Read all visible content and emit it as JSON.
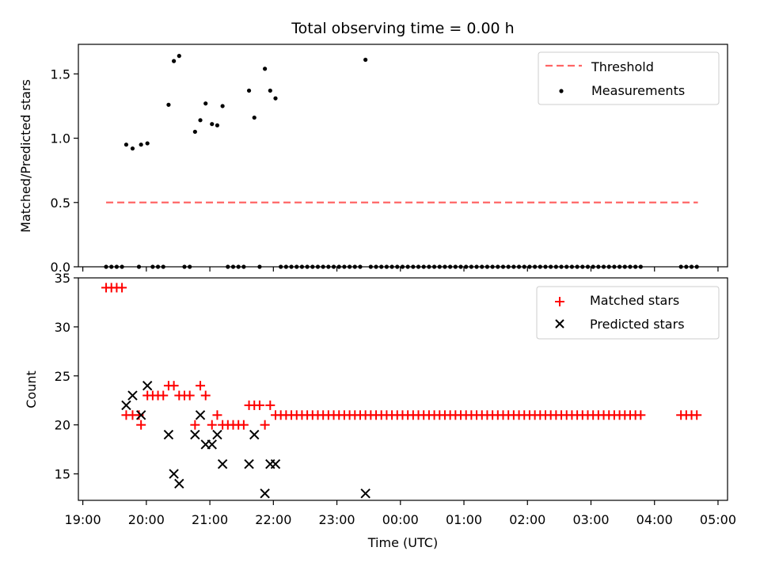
{
  "title": "Total observing time = 0.00 h",
  "xlabel": "Time (UTC)",
  "chart_data": [
    {
      "type": "scatter",
      "panel": "top",
      "title": "Total observing time = 0.00 h",
      "xlabel": "",
      "ylabel": "Matched/Predicted stars",
      "x_unit": "hours after 19:00 UTC",
      "xlim": [
        18.93,
        29.15
      ],
      "ylim": [
        0.0,
        1.73
      ],
      "yticks": [
        0.0,
        0.5,
        1.0,
        1.5
      ],
      "ytick_labels": [
        "0.0",
        "0.5",
        "1.0",
        "1.5"
      ],
      "grid": false,
      "legend_position": "upper right",
      "threshold": {
        "name": "Threshold",
        "color": "#ff6666",
        "style": "dashed",
        "x_range": [
          "19:22",
          "23:53+04:48"
        ],
        "y": 0.5
      },
      "series": [
        {
          "name": "Measurements",
          "color": "#000000",
          "marker": "dot",
          "points": [
            [
              "19:22",
              0.0
            ],
            [
              "19:27",
              0.0
            ],
            [
              "19:32",
              0.0
            ],
            [
              "19:37",
              0.0
            ],
            [
              "19:41",
              0.95
            ],
            [
              "19:47",
              0.92
            ],
            [
              "19:53",
              0.0
            ],
            [
              "19:55",
              0.95
            ],
            [
              "20:01",
              0.96
            ],
            [
              "20:06",
              0.0
            ],
            [
              "20:11",
              0.0
            ],
            [
              "20:16",
              0.0
            ],
            [
              "20:21",
              1.26
            ],
            [
              "20:26",
              1.6
            ],
            [
              "20:31",
              1.64
            ],
            [
              "20:36",
              0.0
            ],
            [
              "20:41",
              0.0
            ],
            [
              "20:46",
              1.05
            ],
            [
              "20:51",
              1.14
            ],
            [
              "20:56",
              1.27
            ],
            [
              "21:02",
              1.11
            ],
            [
              "21:07",
              1.1
            ],
            [
              "21:12",
              1.25
            ],
            [
              "21:17",
              0.0
            ],
            [
              "21:22",
              0.0
            ],
            [
              "21:27",
              0.0
            ],
            [
              "21:32",
              0.0
            ],
            [
              "21:37",
              1.37
            ],
            [
              "21:42",
              1.16
            ],
            [
              "21:47",
              0.0
            ],
            [
              "21:52",
              1.54
            ],
            [
              "21:57",
              1.37
            ],
            [
              "22:02",
              1.31
            ],
            [
              "22:07",
              0.0
            ],
            [
              "22:12",
              0.0
            ],
            [
              "22:17",
              0.0
            ],
            [
              "22:22",
              0.0
            ],
            [
              "22:27",
              0.0
            ],
            [
              "22:32",
              0.0
            ],
            [
              "22:37",
              0.0
            ],
            [
              "22:42",
              0.0
            ],
            [
              "22:47",
              0.0
            ],
            [
              "22:52",
              0.0
            ],
            [
              "22:57",
              0.0
            ],
            [
              "23:02",
              0.0
            ],
            [
              "23:07",
              0.0
            ],
            [
              "23:12",
              0.0
            ],
            [
              "23:17",
              0.0
            ],
            [
              "23:22",
              0.0
            ],
            [
              "23:27",
              1.61
            ],
            [
              "23:32",
              0.0
            ],
            [
              "23:37",
              0.0
            ],
            [
              "23:42",
              0.0
            ],
            [
              "23:47",
              0.0
            ],
            [
              "23:52",
              0.0
            ],
            [
              "23:57",
              0.0
            ],
            [
              "00:02",
              0.0
            ],
            [
              "00:07",
              0.0
            ],
            [
              "00:12",
              0.0
            ],
            [
              "00:17",
              0.0
            ],
            [
              "00:22",
              0.0
            ],
            [
              "00:27",
              0.0
            ],
            [
              "00:32",
              0.0
            ],
            [
              "00:37",
              0.0
            ],
            [
              "00:42",
              0.0
            ],
            [
              "00:47",
              0.0
            ],
            [
              "00:52",
              0.0
            ],
            [
              "00:57",
              0.0
            ],
            [
              "01:02",
              0.0
            ],
            [
              "01:07",
              0.0
            ],
            [
              "01:12",
              0.0
            ],
            [
              "01:17",
              0.0
            ],
            [
              "01:22",
              0.0
            ],
            [
              "01:27",
              0.0
            ],
            [
              "01:32",
              0.0
            ],
            [
              "01:37",
              0.0
            ],
            [
              "01:42",
              0.0
            ],
            [
              "01:47",
              0.0
            ],
            [
              "01:52",
              0.0
            ],
            [
              "01:57",
              0.0
            ],
            [
              "02:02",
              0.0
            ],
            [
              "02:07",
              0.0
            ],
            [
              "02:12",
              0.0
            ],
            [
              "02:17",
              0.0
            ],
            [
              "02:22",
              0.0
            ],
            [
              "02:27",
              0.0
            ],
            [
              "02:32",
              0.0
            ],
            [
              "02:37",
              0.0
            ],
            [
              "02:42",
              0.0
            ],
            [
              "02:47",
              0.0
            ],
            [
              "02:52",
              0.0
            ],
            [
              "02:57",
              0.0
            ],
            [
              "03:02",
              0.0
            ],
            [
              "03:07",
              0.0
            ],
            [
              "03:12",
              0.0
            ],
            [
              "03:17",
              0.0
            ],
            [
              "03:22",
              0.0
            ],
            [
              "03:27",
              0.0
            ],
            [
              "03:32",
              0.0
            ],
            [
              "03:37",
              0.0
            ],
            [
              "03:42",
              0.0
            ],
            [
              "03:47",
              0.0
            ],
            [
              "04:25",
              0.0
            ],
            [
              "04:30",
              0.0
            ],
            [
              "04:35",
              0.0
            ],
            [
              "04:40",
              0.0
            ]
          ]
        }
      ]
    },
    {
      "type": "scatter",
      "panel": "bottom",
      "xlabel": "Time (UTC)",
      "ylabel": "Count",
      "ylim": [
        12.3,
        35.0
      ],
      "yticks": [
        15,
        20,
        25,
        30,
        35
      ],
      "ytick_labels": [
        "15",
        "20",
        "25",
        "30",
        "35"
      ],
      "xticks": [
        "19:00",
        "20:00",
        "21:00",
        "22:00",
        "23:00",
        "00:00",
        "01:00",
        "02:00",
        "03:00",
        "04:00",
        "05:00"
      ],
      "grid": false,
      "legend_position": "upper right",
      "series": [
        {
          "name": "Matched stars",
          "color": "#ff0000",
          "marker": "plus",
          "points": [
            [
              "19:22",
              34
            ],
            [
              "19:27",
              34
            ],
            [
              "19:32",
              34
            ],
            [
              "19:37",
              34
            ],
            [
              "19:41",
              21
            ],
            [
              "19:47",
              21
            ],
            [
              "19:53",
              21
            ],
            [
              "19:55",
              20
            ],
            [
              "20:01",
              23
            ],
            [
              "20:06",
              23
            ],
            [
              "20:11",
              23
            ],
            [
              "20:16",
              23
            ],
            [
              "20:21",
              24
            ],
            [
              "20:26",
              24
            ],
            [
              "20:31",
              23
            ],
            [
              "20:36",
              23
            ],
            [
              "20:41",
              23
            ],
            [
              "20:46",
              20
            ],
            [
              "20:51",
              24
            ],
            [
              "20:56",
              23
            ],
            [
              "21:02",
              20
            ],
            [
              "21:07",
              21
            ],
            [
              "21:12",
              20
            ],
            [
              "21:17",
              20
            ],
            [
              "21:22",
              20
            ],
            [
              "21:27",
              20
            ],
            [
              "21:32",
              20
            ],
            [
              "21:37",
              22
            ],
            [
              "21:42",
              22
            ],
            [
              "21:47",
              22
            ],
            [
              "21:52",
              20
            ],
            [
              "21:57",
              22
            ],
            [
              "22:02",
              21
            ],
            [
              "22:07",
              21
            ],
            [
              "22:12",
              21
            ],
            [
              "22:17",
              21
            ],
            [
              "22:22",
              21
            ],
            [
              "22:27",
              21
            ],
            [
              "22:32",
              21
            ],
            [
              "22:37",
              21
            ],
            [
              "22:42",
              21
            ],
            [
              "22:47",
              21
            ],
            [
              "22:52",
              21
            ],
            [
              "22:57",
              21
            ],
            [
              "23:02",
              21
            ],
            [
              "23:07",
              21
            ],
            [
              "23:12",
              21
            ],
            [
              "23:17",
              21
            ],
            [
              "23:22",
              21
            ],
            [
              "23:27",
              21
            ],
            [
              "23:32",
              21
            ],
            [
              "23:37",
              21
            ],
            [
              "23:42",
              21
            ],
            [
              "23:47",
              21
            ],
            [
              "23:52",
              21
            ],
            [
              "23:57",
              21
            ],
            [
              "00:02",
              21
            ],
            [
              "00:07",
              21
            ],
            [
              "00:12",
              21
            ],
            [
              "00:17",
              21
            ],
            [
              "00:22",
              21
            ],
            [
              "00:27",
              21
            ],
            [
              "00:32",
              21
            ],
            [
              "00:37",
              21
            ],
            [
              "00:42",
              21
            ],
            [
              "00:47",
              21
            ],
            [
              "00:52",
              21
            ],
            [
              "00:57",
              21
            ],
            [
              "01:02",
              21
            ],
            [
              "01:07",
              21
            ],
            [
              "01:12",
              21
            ],
            [
              "01:17",
              21
            ],
            [
              "01:22",
              21
            ],
            [
              "01:27",
              21
            ],
            [
              "01:32",
              21
            ],
            [
              "01:37",
              21
            ],
            [
              "01:42",
              21
            ],
            [
              "01:47",
              21
            ],
            [
              "01:52",
              21
            ],
            [
              "01:57",
              21
            ],
            [
              "02:02",
              21
            ],
            [
              "02:07",
              21
            ],
            [
              "02:12",
              21
            ],
            [
              "02:17",
              21
            ],
            [
              "02:22",
              21
            ],
            [
              "02:27",
              21
            ],
            [
              "02:32",
              21
            ],
            [
              "02:37",
              21
            ],
            [
              "02:42",
              21
            ],
            [
              "02:47",
              21
            ],
            [
              "02:52",
              21
            ],
            [
              "02:57",
              21
            ],
            [
              "03:02",
              21
            ],
            [
              "03:07",
              21
            ],
            [
              "03:12",
              21
            ],
            [
              "03:17",
              21
            ],
            [
              "03:22",
              21
            ],
            [
              "03:27",
              21
            ],
            [
              "03:32",
              21
            ],
            [
              "03:37",
              21
            ],
            [
              "03:42",
              21
            ],
            [
              "03:47",
              21
            ],
            [
              "04:25",
              21
            ],
            [
              "04:30",
              21
            ],
            [
              "04:35",
              21
            ],
            [
              "04:40",
              21
            ]
          ]
        },
        {
          "name": "Predicted stars",
          "color": "#000000",
          "marker": "x",
          "points": [
            [
              "19:41",
              22
            ],
            [
              "19:47",
              23
            ],
            [
              "19:55",
              21
            ],
            [
              "20:01",
              24
            ],
            [
              "20:21",
              19
            ],
            [
              "20:26",
              15
            ],
            [
              "20:31",
              14
            ],
            [
              "20:46",
              19
            ],
            [
              "20:51",
              21
            ],
            [
              "20:56",
              18
            ],
            [
              "21:02",
              18
            ],
            [
              "21:07",
              19
            ],
            [
              "21:12",
              16
            ],
            [
              "21:37",
              16
            ],
            [
              "21:42",
              19
            ],
            [
              "21:52",
              13
            ],
            [
              "21:57",
              16
            ],
            [
              "22:02",
              16
            ],
            [
              "23:27",
              13
            ]
          ]
        }
      ]
    }
  ]
}
